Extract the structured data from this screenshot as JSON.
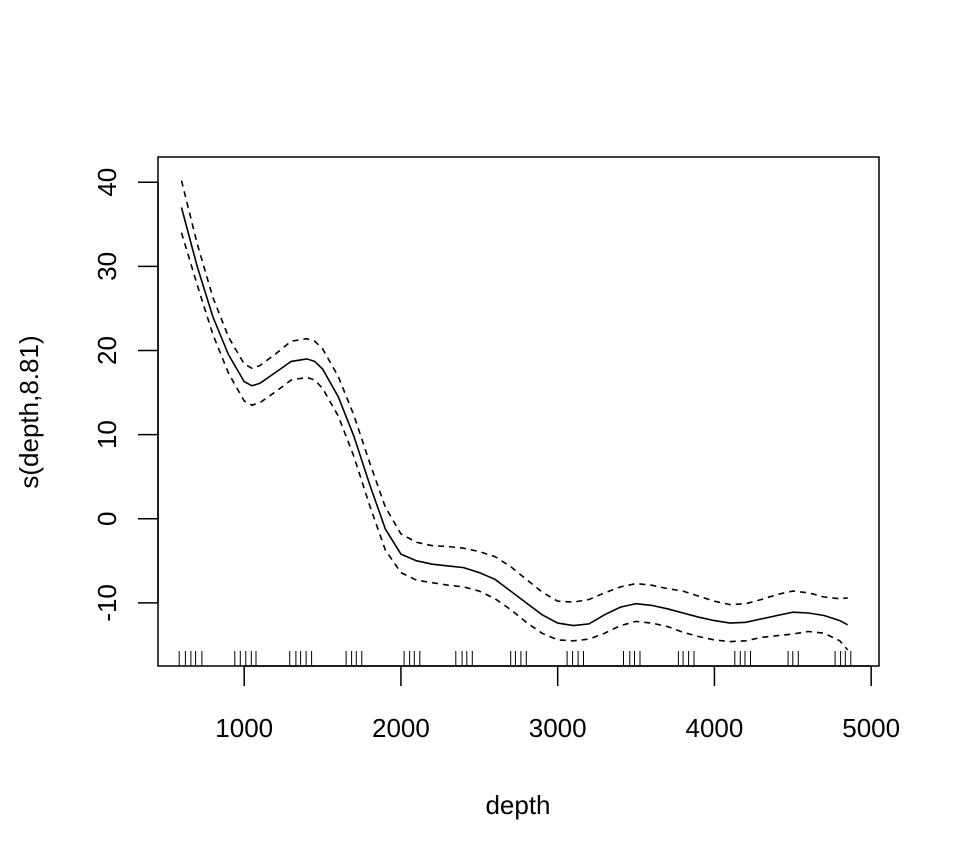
{
  "chart_data": {
    "type": "line",
    "title": "",
    "xlabel": "depth",
    "ylabel": "s(depth,8.81)",
    "xlim": [
      450,
      5050
    ],
    "ylim": [
      -17.5,
      43
    ],
    "xticks": [
      1000,
      2000,
      3000,
      4000,
      5000
    ],
    "yticks": [
      -10,
      0,
      10,
      20,
      30,
      40
    ],
    "grid": false,
    "legend": "none",
    "series": [
      {
        "line_style": "solid",
        "x": [
          600,
          700,
          800,
          900,
          1000,
          1050,
          1100,
          1200,
          1300,
          1400,
          1450,
          1500,
          1600,
          1700,
          1800,
          1900,
          2000,
          2100,
          2200,
          2300,
          2400,
          2500,
          2600,
          2700,
          2800,
          2900,
          3000,
          3100,
          3200,
          3300,
          3400,
          3500,
          3600,
          3700,
          3800,
          3900,
          4000,
          4100,
          4200,
          4300,
          4400,
          4500,
          4600,
          4700,
          4800,
          4850
        ],
        "y": [
          37,
          30,
          24,
          19.5,
          16.3,
          15.8,
          16.1,
          17.4,
          18.7,
          19,
          18.7,
          17.8,
          14.5,
          9.8,
          4.1,
          -1.2,
          -4.2,
          -5,
          -5.4,
          -5.6,
          -5.8,
          -6.4,
          -7.2,
          -8.6,
          -10,
          -11.4,
          -12.4,
          -12.7,
          -12.5,
          -11.4,
          -10.5,
          -10.1,
          -10.3,
          -10.7,
          -11.2,
          -11.7,
          -12.1,
          -12.4,
          -12.3,
          -11.9,
          -11.5,
          -11.1,
          -11.2,
          -11.5,
          -12.1,
          -12.6
        ]
      },
      {
        "line_style": "dashed",
        "x": [
          600,
          700,
          800,
          900,
          1000,
          1050,
          1100,
          1200,
          1300,
          1400,
          1450,
          1500,
          1600,
          1700,
          1800,
          1900,
          2000,
          2100,
          2200,
          2300,
          2400,
          2500,
          2600,
          2700,
          2800,
          2900,
          3000,
          3100,
          3200,
          3300,
          3400,
          3500,
          3600,
          3700,
          3800,
          3900,
          4000,
          4100,
          4200,
          4300,
          4400,
          4500,
          4600,
          4700,
          4800,
          4850
        ],
        "y": [
          40.2,
          32.7,
          26.3,
          21.6,
          18.4,
          17.9,
          18.2,
          19.6,
          21.1,
          21.4,
          21.1,
          20.2,
          16.9,
          12.3,
          6.7,
          1.4,
          -1.8,
          -2.8,
          -3.2,
          -3.3,
          -3.5,
          -3.9,
          -4.5,
          -5.7,
          -7.2,
          -8.7,
          -9.8,
          -9.9,
          -9.6,
          -8.8,
          -8.1,
          -7.7,
          -7.9,
          -8.3,
          -8.6,
          -9.2,
          -9.8,
          -10.2,
          -10.1,
          -9.6,
          -9,
          -8.6,
          -8.8,
          -9.3,
          -9.5,
          -9.4
        ]
      },
      {
        "line_style": "dashed",
        "x": [
          600,
          700,
          800,
          900,
          1000,
          1050,
          1100,
          1200,
          1300,
          1400,
          1450,
          1500,
          1600,
          1700,
          1800,
          1900,
          2000,
          2100,
          2200,
          2300,
          2400,
          2500,
          2600,
          2700,
          2800,
          2900,
          3000,
          3100,
          3200,
          3300,
          3400,
          3500,
          3600,
          3700,
          3800,
          3900,
          4000,
          4100,
          4200,
          4300,
          4400,
          4500,
          4600,
          4700,
          4800,
          4850
        ],
        "y": [
          34,
          27.8,
          21.9,
          17.3,
          14,
          13.5,
          13.8,
          15.1,
          16.5,
          16.8,
          16.5,
          15.5,
          12.2,
          7.4,
          1.6,
          -3.7,
          -6.4,
          -7.3,
          -7.6,
          -7.9,
          -8.1,
          -8.6,
          -9.5,
          -10.8,
          -12.3,
          -13.6,
          -14.4,
          -14.5,
          -14.3,
          -13.6,
          -12.7,
          -12.2,
          -12.4,
          -12.8,
          -13.5,
          -14,
          -14.4,
          -14.6,
          -14.5,
          -14.1,
          -13.9,
          -13.7,
          -13.4,
          -13.6,
          -14.5,
          -15.6
        ]
      }
    ],
    "rug": [
      585,
      625,
      660,
      690,
      730,
      940,
      975,
      1010,
      1045,
      1075,
      1290,
      1330,
      1360,
      1395,
      1430,
      1650,
      1685,
      1715,
      1750,
      2020,
      2055,
      2085,
      2120,
      2350,
      2390,
      2420,
      2455,
      2700,
      2730,
      2765,
      2800,
      3060,
      3095,
      3130,
      3165,
      3420,
      3460,
      3490,
      3525,
      3770,
      3800,
      3835,
      3870,
      4130,
      4165,
      4195,
      4230,
      4470,
      4500,
      4535,
      4770,
      4805,
      4835,
      4870
    ]
  }
}
